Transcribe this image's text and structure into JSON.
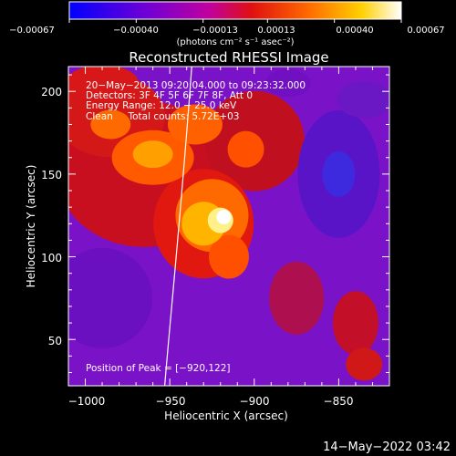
{
  "chart_data": {
    "type": "heatmap",
    "title": "Reconstructed RHESSI Image",
    "xlabel": "Heliocentric X (arcsec)",
    "ylabel": "Heliocentric Y (arcsec)",
    "xlim": [
      -1010,
      -820
    ],
    "ylim": [
      22,
      215
    ],
    "xticks": [
      -1000,
      -950,
      -900,
      -850
    ],
    "xtick_labels": [
      "−1000",
      "−950",
      "−900",
      "−850"
    ],
    "yticks": [
      50,
      100,
      150,
      200
    ],
    "ytick_labels": [
      "50",
      "100",
      "150",
      "200"
    ],
    "colorbar": {
      "range": [
        -0.00067,
        0.00067
      ],
      "ticks": [
        -0.00067,
        -0.0004,
        -0.00013,
        0.00013,
        0.0004,
        0.00067
      ],
      "tick_labels": [
        "−0.00067",
        "−0.00040",
        "−0.00013",
        "0.00013",
        "0.00040",
        "0.00067"
      ],
      "unit_label": "(photons cm⁻² s⁻¹ asec⁻²)",
      "colors": [
        "#0000ff",
        "#8000c8",
        "#d81010",
        "#ff6a00",
        "#ffcc00",
        "#ffffff"
      ]
    },
    "annotations": [
      "20−May−2013 09:20:04.000 to 09:23:32.000",
      "Detectors: 3F 4F 5F 6F 7F 8F, Att 0",
      "Energy Range: 12.0 − 25.0 keV",
      "Clean     Total counts: 5.72E+03"
    ],
    "peak_label": "Position of Peak = [−920,122]",
    "peak_position": [
      -920,
      122
    ],
    "limb_curve": [
      [
        -937,
        215
      ],
      [
        -943,
        130
      ],
      [
        -950,
        60
      ],
      [
        -953,
        22
      ]
    ]
  },
  "footer": {
    "timestamp": "14−May−2022 03:42"
  }
}
